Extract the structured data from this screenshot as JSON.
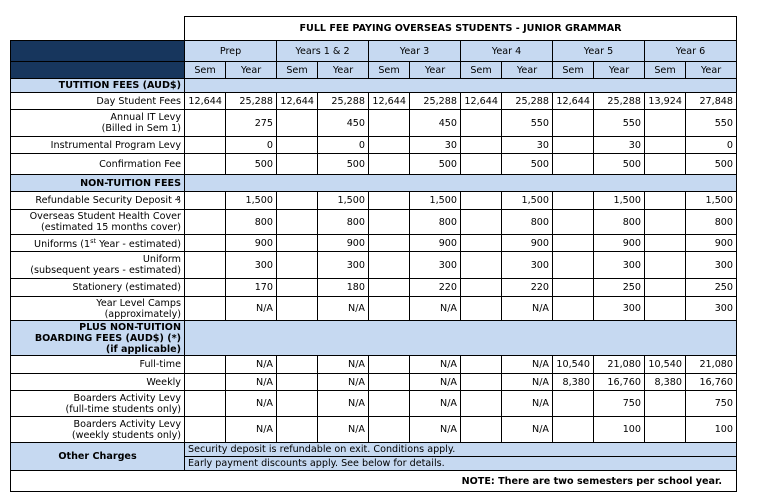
{
  "title": "FULL FEE PAYING OVERSEAS STUDENTS - JUNIOR GRAMMAR",
  "year_groups": [
    "Prep",
    "Years 1 & 2",
    "Year 3",
    "Year 4",
    "Year 5",
    "Year 6"
  ],
  "sem_label": "Sem",
  "year_label": "Year",
  "sections": {
    "tuition": "TUTITION FEES (AUD$)",
    "non_tuition": "NON-TUITION FEES",
    "boarding_line1": "PLUS NON-TUITION",
    "boarding_line2": "BOARDING FEES (AUD$) (*)",
    "boarding_line3": "(if applicable)"
  },
  "rows": {
    "day_student": {
      "label": "Day Student Fees",
      "values": [
        "12,644",
        "25,288",
        "12,644",
        "25,288",
        "12,644",
        "25,288",
        "12,644",
        "25,288",
        "12,644",
        "25,288",
        "13,924",
        "27,848"
      ]
    },
    "it_levy": {
      "label1": "Annual IT Levy",
      "label2": "(Billed in Sem 1)",
      "values": [
        "",
        "275",
        "",
        "450",
        "",
        "450",
        "",
        "550",
        "",
        "550",
        "",
        "550"
      ]
    },
    "instrumental": {
      "label": "Instrumental Program Levy",
      "values": [
        "",
        "0",
        "",
        "0",
        "",
        "30",
        "",
        "30",
        "",
        "30",
        "",
        "0"
      ]
    },
    "confirmation": {
      "label": "Confirmation Fee",
      "values": [
        "",
        "500",
        "",
        "500",
        "",
        "500",
        "",
        "500",
        "",
        "500",
        "",
        "500"
      ]
    },
    "security": {
      "label": "Refundable Security Deposit ₰",
      "values": [
        "",
        "1,500",
        "",
        "1,500",
        "",
        "1,500",
        "",
        "1,500",
        "",
        "1,500",
        "",
        "1,500"
      ]
    },
    "oshc": {
      "label1": "Overseas Student Health Cover",
      "label2": "(estimated 15 months cover)",
      "values": [
        "",
        "800",
        "",
        "800",
        "",
        "800",
        "",
        "800",
        "",
        "800",
        "",
        "800"
      ]
    },
    "uniforms_first": {
      "label_pre": "Uniforms (1",
      "label_sup": "st",
      "label_post": " Year - estimated)",
      "values": [
        "",
        "900",
        "",
        "900",
        "",
        "900",
        "",
        "900",
        "",
        "900",
        "",
        "900"
      ]
    },
    "uniform_sub": {
      "label1": "Uniform",
      "label2": "(subsequent years - estimated)",
      "values": [
        "",
        "300",
        "",
        "300",
        "",
        "300",
        "",
        "300",
        "",
        "300",
        "",
        "300"
      ]
    },
    "stationery": {
      "label": "Stationery (estimated)",
      "values": [
        "",
        "170",
        "",
        "180",
        "",
        "220",
        "",
        "220",
        "",
        "250",
        "",
        "250"
      ]
    },
    "camps": {
      "label1": "Year Level Camps",
      "label2": "(approximately)",
      "values": [
        "",
        "N/A",
        "",
        "N/A",
        "",
        "N/A",
        "",
        "N/A",
        "",
        "300",
        "",
        "300"
      ]
    },
    "full_time": {
      "label": "Full-time",
      "values": [
        "",
        "N/A",
        "",
        "N/A",
        "",
        "N/A",
        "",
        "N/A",
        "10,540",
        "21,080",
        "10,540",
        "21,080"
      ]
    },
    "weekly": {
      "label": "Weekly",
      "values": [
        "",
        "N/A",
        "",
        "N/A",
        "",
        "N/A",
        "",
        "N/A",
        "8,380",
        "16,760",
        "8,380",
        "16,760"
      ]
    },
    "boarders_ft": {
      "label1": "Boarders Activity Levy",
      "label2": "(full-time students only)",
      "values": [
        "",
        "N/A",
        "",
        "N/A",
        "",
        "N/A",
        "",
        "N/A",
        "",
        "750",
        "",
        "750"
      ]
    },
    "boarders_wk": {
      "label1": "Boarders Activity Levy",
      "label2": "(weekly students only)",
      "values": [
        "",
        "N/A",
        "",
        "N/A",
        "",
        "N/A",
        "",
        "N/A",
        "",
        "100",
        "",
        "100"
      ]
    }
  },
  "other_charges": {
    "label": "Other Charges",
    "note1": "Security deposit is refundable on exit. Conditions apply.",
    "note2": "Early payment discounts apply. See below for details."
  },
  "footer_note": "NOTE: There are two semesters per school year."
}
